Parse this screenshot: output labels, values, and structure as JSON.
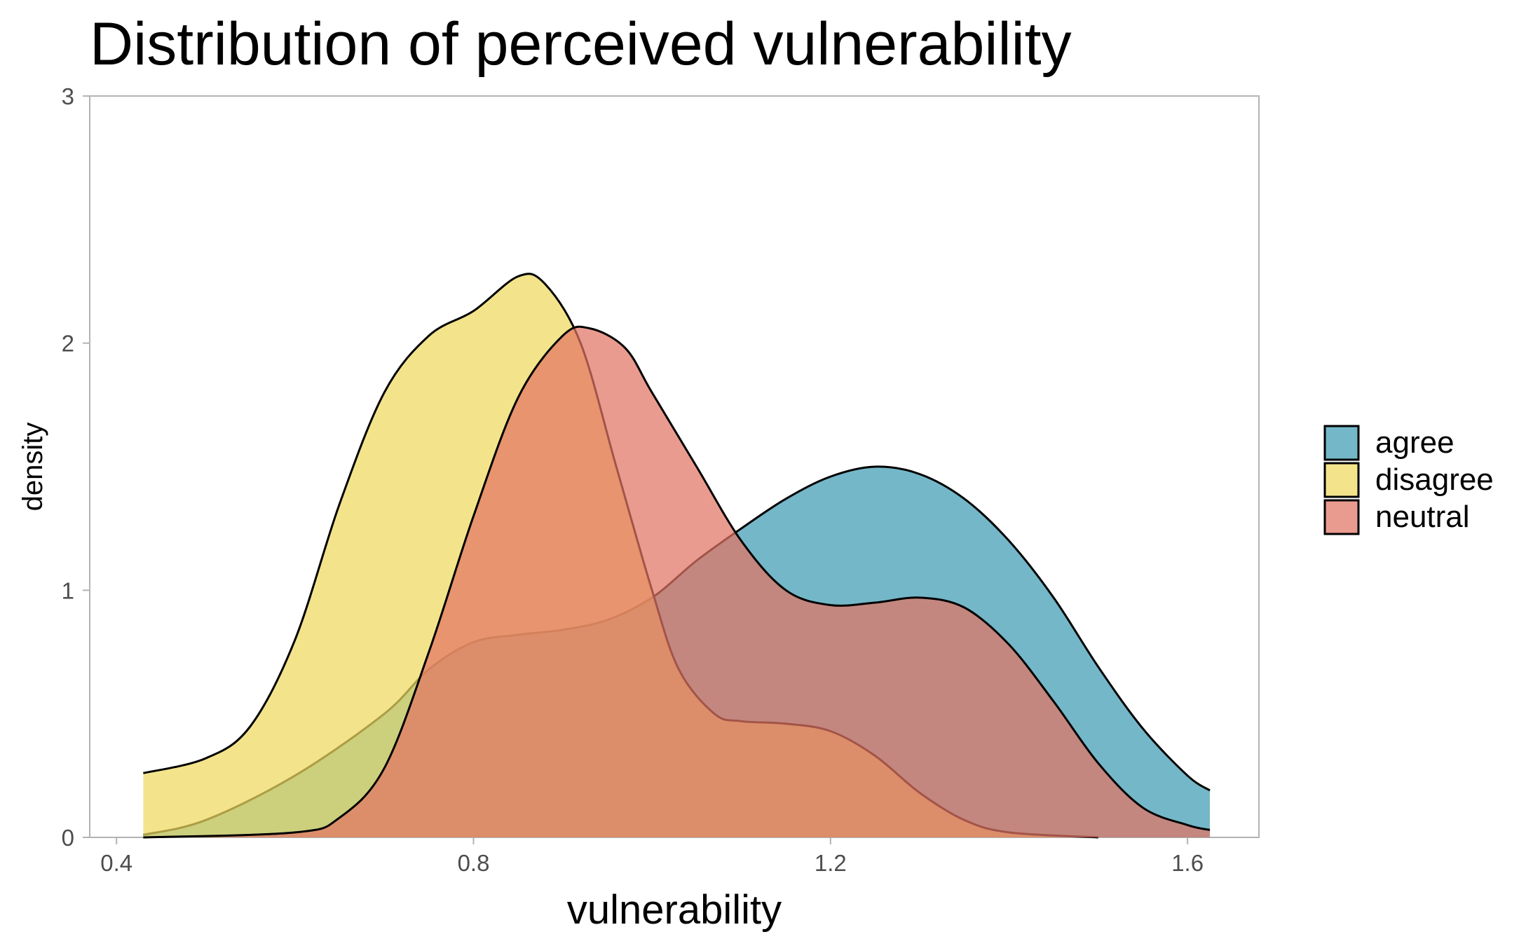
{
  "chart_data": {
    "type": "area",
    "chart_kind": "density",
    "title": "Distribution of perceived vulnerability",
    "xlabel": "vulnerability",
    "ylabel": "density",
    "xlim": [
      0.37,
      1.68
    ],
    "ylim": [
      0,
      3
    ],
    "x_ticks": [
      0.4,
      0.8,
      1.2,
      1.6
    ],
    "x_tick_labels": [
      "0.4",
      "0.8",
      "1.2",
      "1.6"
    ],
    "y_ticks": [
      0,
      1,
      2,
      3
    ],
    "y_tick_labels": [
      "0",
      "1",
      "2",
      "3"
    ],
    "grid": false,
    "legend_position": "right",
    "series": [
      {
        "name": "agree",
        "color": "#3f9bb3",
        "points": [
          [
            0.43,
            0.01
          ],
          [
            0.5,
            0.07
          ],
          [
            0.6,
            0.25
          ],
          [
            0.7,
            0.5
          ],
          [
            0.75,
            0.68
          ],
          [
            0.8,
            0.79
          ],
          [
            0.85,
            0.82
          ],
          [
            0.9,
            0.84
          ],
          [
            0.95,
            0.88
          ],
          [
            1.0,
            0.97
          ],
          [
            1.05,
            1.12
          ],
          [
            1.1,
            1.25
          ],
          [
            1.15,
            1.37
          ],
          [
            1.2,
            1.46
          ],
          [
            1.25,
            1.5
          ],
          [
            1.3,
            1.47
          ],
          [
            1.35,
            1.37
          ],
          [
            1.4,
            1.2
          ],
          [
            1.45,
            0.97
          ],
          [
            1.5,
            0.69
          ],
          [
            1.55,
            0.44
          ],
          [
            1.6,
            0.25
          ],
          [
            1.625,
            0.19
          ]
        ]
      },
      {
        "name": "disagree",
        "color": "#eed960",
        "points": [
          [
            0.43,
            0.26
          ],
          [
            0.5,
            0.32
          ],
          [
            0.55,
            0.45
          ],
          [
            0.6,
            0.8
          ],
          [
            0.65,
            1.35
          ],
          [
            0.7,
            1.8
          ],
          [
            0.75,
            2.03
          ],
          [
            0.8,
            2.13
          ],
          [
            0.85,
            2.27
          ],
          [
            0.88,
            2.24
          ],
          [
            0.92,
            2.0
          ],
          [
            0.96,
            1.5
          ],
          [
            1.0,
            1.0
          ],
          [
            1.03,
            0.68
          ],
          [
            1.07,
            0.5
          ],
          [
            1.1,
            0.47
          ],
          [
            1.15,
            0.46
          ],
          [
            1.2,
            0.43
          ],
          [
            1.25,
            0.33
          ],
          [
            1.3,
            0.18
          ],
          [
            1.35,
            0.07
          ],
          [
            1.4,
            0.02
          ],
          [
            1.5,
            0.0
          ]
        ]
      },
      {
        "name": "neutral",
        "color": "#e27464",
        "points": [
          [
            0.43,
            0.0
          ],
          [
            0.6,
            0.02
          ],
          [
            0.65,
            0.08
          ],
          [
            0.7,
            0.28
          ],
          [
            0.75,
            0.75
          ],
          [
            0.8,
            1.3
          ],
          [
            0.85,
            1.78
          ],
          [
            0.9,
            2.03
          ],
          [
            0.93,
            2.06
          ],
          [
            0.97,
            1.98
          ],
          [
            1.0,
            1.8
          ],
          [
            1.05,
            1.5
          ],
          [
            1.1,
            1.2
          ],
          [
            1.15,
            1.0
          ],
          [
            1.2,
            0.94
          ],
          [
            1.25,
            0.95
          ],
          [
            1.3,
            0.97
          ],
          [
            1.35,
            0.93
          ],
          [
            1.4,
            0.78
          ],
          [
            1.45,
            0.55
          ],
          [
            1.5,
            0.3
          ],
          [
            1.55,
            0.12
          ],
          [
            1.6,
            0.05
          ],
          [
            1.625,
            0.03
          ]
        ]
      }
    ]
  }
}
